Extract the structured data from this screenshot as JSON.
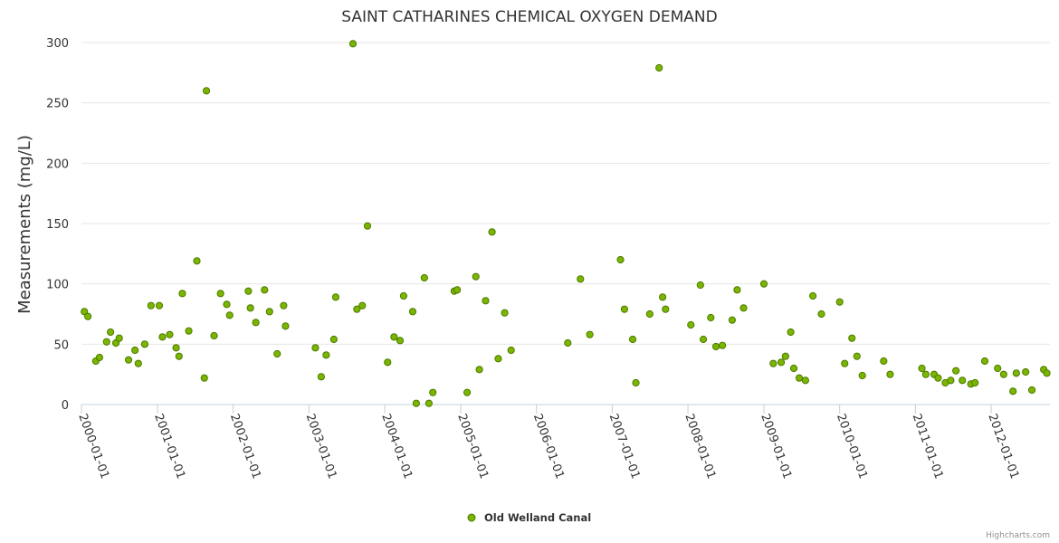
{
  "chart_data": {
    "type": "scatter",
    "title": "SAINT CATHARINES CHEMICAL OXYGEN DEMAND",
    "xlabel": "",
    "ylabel": "Measurements (mg/L)",
    "ylim": [
      0,
      300
    ],
    "xlim": [
      "2000-01-01",
      "2012-10-10"
    ],
    "y_ticks": [
      "0",
      "50",
      "100",
      "150",
      "200",
      "250",
      "300"
    ],
    "x_ticks": [
      "2000-01-01",
      "2001-01-01",
      "2002-01-01",
      "2003-01-01",
      "2004-01-01",
      "2005-01-01",
      "2006-01-01",
      "2007-01-01",
      "2008-01-01",
      "2009-01-01",
      "2010-01-01",
      "2011-01-01",
      "2012-01-01"
    ],
    "grid": true,
    "legend_position": "bottom-center",
    "colors": {
      "marker_fill": "#7cb500",
      "marker_stroke": "#4a7a00",
      "grid": "#e6e6e6",
      "axis": "#c0d0e0"
    },
    "series": [
      {
        "name": "Old Welland Canal",
        "points": [
          [
            "2000-01-15",
            77
          ],
          [
            "2000-02-01",
            73
          ],
          [
            "2000-03-10",
            36
          ],
          [
            "2000-03-28",
            39
          ],
          [
            "2000-05-01",
            52
          ],
          [
            "2000-05-20",
            60
          ],
          [
            "2000-06-15",
            51
          ],
          [
            "2000-07-01",
            55
          ],
          [
            "2000-08-15",
            37
          ],
          [
            "2000-09-15",
            45
          ],
          [
            "2000-10-01",
            34
          ],
          [
            "2000-11-01",
            50
          ],
          [
            "2000-12-01",
            82
          ],
          [
            "2001-01-10",
            82
          ],
          [
            "2001-01-25",
            56
          ],
          [
            "2001-03-01",
            58
          ],
          [
            "2001-04-01",
            47
          ],
          [
            "2001-04-15",
            40
          ],
          [
            "2001-05-01",
            92
          ],
          [
            "2001-06-01",
            61
          ],
          [
            "2001-07-10",
            119
          ],
          [
            "2001-08-15",
            22
          ],
          [
            "2001-08-25",
            260
          ],
          [
            "2001-10-01",
            57
          ],
          [
            "2001-11-01",
            92
          ],
          [
            "2001-12-01",
            83
          ],
          [
            "2001-12-15",
            74
          ],
          [
            "2002-03-15",
            94
          ],
          [
            "2002-03-25",
            80
          ],
          [
            "2002-04-20",
            68
          ],
          [
            "2002-06-01",
            95
          ],
          [
            "2002-06-25",
            77
          ],
          [
            "2002-08-01",
            42
          ],
          [
            "2002-09-01",
            82
          ],
          [
            "2002-09-10",
            65
          ],
          [
            "2003-02-01",
            47
          ],
          [
            "2003-03-01",
            23
          ],
          [
            "2003-03-25",
            41
          ],
          [
            "2003-05-01",
            54
          ],
          [
            "2003-05-10",
            89
          ],
          [
            "2003-08-01",
            299
          ],
          [
            "2003-08-20",
            79
          ],
          [
            "2003-09-15",
            82
          ],
          [
            "2003-10-10",
            148
          ],
          [
            "2004-01-15",
            35
          ],
          [
            "2004-02-15",
            56
          ],
          [
            "2004-03-15",
            53
          ],
          [
            "2004-04-01",
            90
          ],
          [
            "2004-05-15",
            77
          ],
          [
            "2004-06-01",
            1
          ],
          [
            "2004-07-10",
            105
          ],
          [
            "2004-08-01",
            1
          ],
          [
            "2004-08-20",
            10
          ],
          [
            "2004-12-01",
            94
          ],
          [
            "2004-12-15",
            95
          ],
          [
            "2005-02-01",
            10
          ],
          [
            "2005-03-15",
            106
          ],
          [
            "2005-04-01",
            29
          ],
          [
            "2005-05-01",
            86
          ],
          [
            "2005-06-01",
            143
          ],
          [
            "2005-07-01",
            38
          ],
          [
            "2005-08-01",
            76
          ],
          [
            "2005-09-01",
            45
          ],
          [
            "2006-06-01",
            51
          ],
          [
            "2006-08-01",
            104
          ],
          [
            "2006-09-15",
            58
          ],
          [
            "2007-02-10",
            120
          ],
          [
            "2007-03-01",
            79
          ],
          [
            "2007-04-10",
            54
          ],
          [
            "2007-04-25",
            18
          ],
          [
            "2007-07-01",
            75
          ],
          [
            "2007-08-15",
            279
          ],
          [
            "2007-09-01",
            89
          ],
          [
            "2007-09-15",
            79
          ],
          [
            "2008-01-15",
            66
          ],
          [
            "2008-03-01",
            99
          ],
          [
            "2008-03-15",
            54
          ],
          [
            "2008-04-20",
            72
          ],
          [
            "2008-05-15",
            48
          ],
          [
            "2008-06-15",
            49
          ],
          [
            "2008-08-01",
            70
          ],
          [
            "2008-08-25",
            95
          ],
          [
            "2008-09-25",
            80
          ],
          [
            "2009-01-01",
            100
          ],
          [
            "2009-02-15",
            34
          ],
          [
            "2009-03-25",
            35
          ],
          [
            "2009-04-15",
            40
          ],
          [
            "2009-05-10",
            60
          ],
          [
            "2009-05-25",
            30
          ],
          [
            "2009-06-20",
            22
          ],
          [
            "2009-07-20",
            20
          ],
          [
            "2009-08-25",
            90
          ],
          [
            "2009-10-05",
            75
          ],
          [
            "2010-01-01",
            85
          ],
          [
            "2010-01-25",
            34
          ],
          [
            "2010-03-01",
            55
          ],
          [
            "2010-03-25",
            40
          ],
          [
            "2010-04-20",
            24
          ],
          [
            "2010-08-01",
            36
          ],
          [
            "2010-09-01",
            25
          ],
          [
            "2011-02-01",
            30
          ],
          [
            "2011-02-20",
            25
          ],
          [
            "2011-04-01",
            25
          ],
          [
            "2011-04-20",
            22
          ],
          [
            "2011-05-25",
            18
          ],
          [
            "2011-06-20",
            20
          ],
          [
            "2011-07-15",
            28
          ],
          [
            "2011-08-15",
            20
          ],
          [
            "2011-09-25",
            17
          ],
          [
            "2011-10-15",
            18
          ],
          [
            "2011-12-01",
            36
          ],
          [
            "2012-02-01",
            30
          ],
          [
            "2012-03-01",
            25
          ],
          [
            "2012-04-15",
            11
          ],
          [
            "2012-05-01",
            26
          ],
          [
            "2012-06-15",
            27
          ],
          [
            "2012-07-15",
            12
          ],
          [
            "2012-09-10",
            29
          ],
          [
            "2012-09-25",
            26
          ]
        ]
      }
    ]
  },
  "credits": "Highcharts.com"
}
